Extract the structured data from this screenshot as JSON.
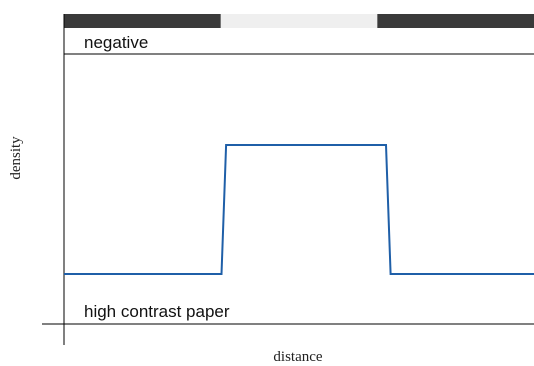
{
  "chart_data": {
    "type": "line",
    "xlabel": "distance",
    "ylabel": "density",
    "negative_label": "negative",
    "paper_label": "high contrast paper",
    "negative_strip": [
      {
        "tone": "dark",
        "color": "#3a3a3a"
      },
      {
        "tone": "light",
        "color": "#efefef"
      },
      {
        "tone": "dark",
        "color": "#3a3a3a"
      }
    ],
    "series": [
      {
        "color": "#1f5fa8",
        "x": [
          0,
          0.335,
          0.345,
          0.685,
          0.695,
          1.0
        ],
        "y": [
          0,
          0,
          1,
          1,
          0,
          0
        ]
      }
    ],
    "xlim": [
      0,
      1
    ],
    "ylim": [
      0,
      1
    ]
  }
}
